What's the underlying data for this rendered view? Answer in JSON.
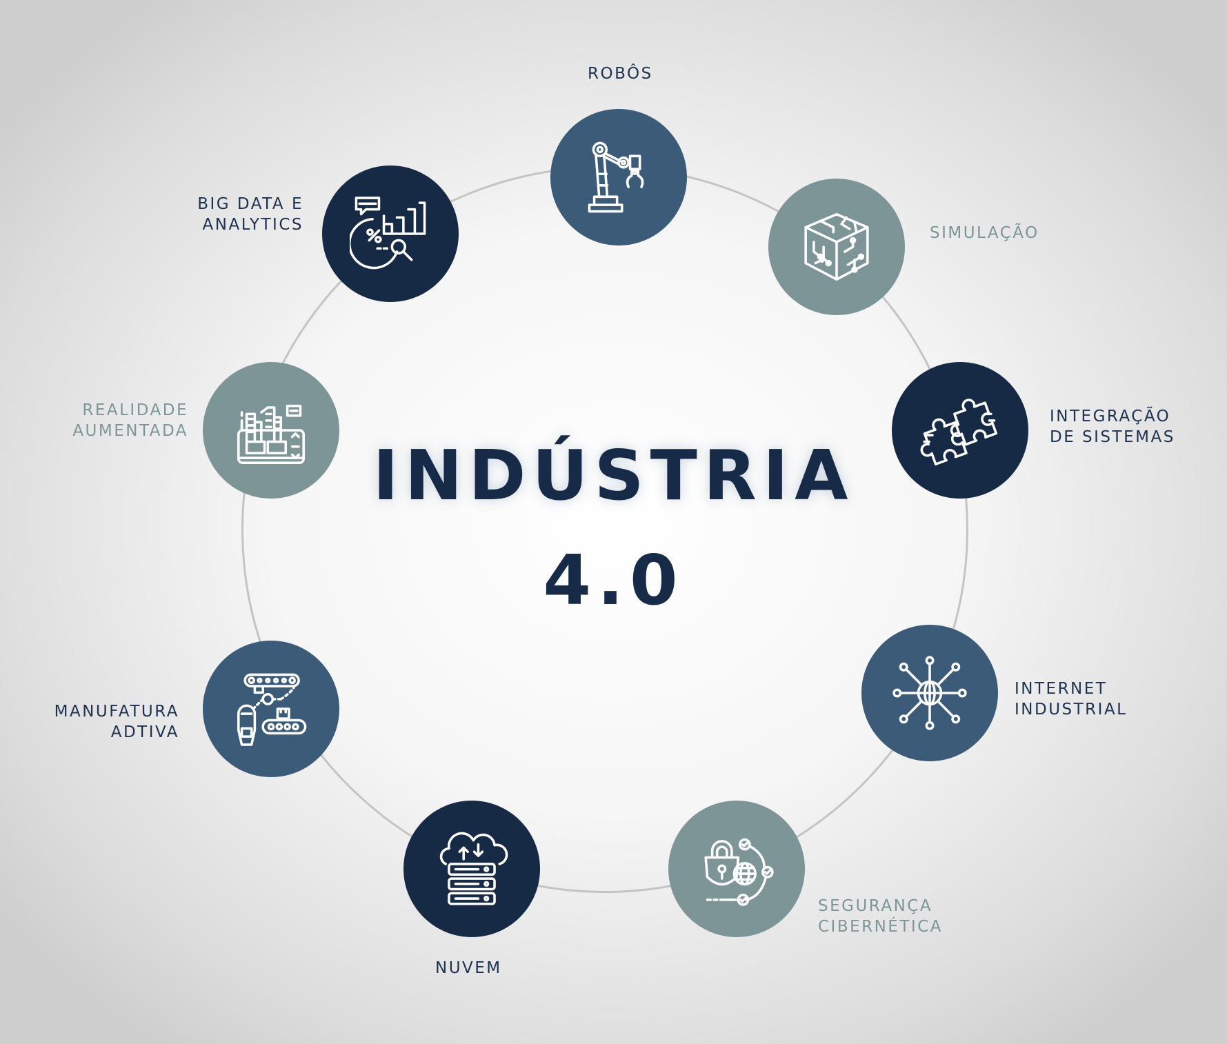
{
  "title": {
    "line1": "INDÚSTRIA",
    "line2": "4.0"
  },
  "colors": {
    "dark_navy": "#172a45",
    "steel_blue": "#3c5b79",
    "slate_gray": "#7d9597",
    "ring": "#c4c4c4",
    "icon_stroke": "#ffffff"
  },
  "nodes": [
    {
      "id": "robos",
      "icon": "robot-arm-icon",
      "lines": [
        "ROBÔS"
      ]
    },
    {
      "id": "simulacao",
      "icon": "circuit-cube-icon",
      "lines": [
        "SIMULAÇÃO"
      ]
    },
    {
      "id": "integracao",
      "icon": "puzzle-icon",
      "lines": [
        "INTEGRAÇÃO",
        "DE SISTEMAS"
      ]
    },
    {
      "id": "internet",
      "icon": "network-globe-icon",
      "lines": [
        "INTERNET",
        "INDUSTRIAL"
      ]
    },
    {
      "id": "seguranca",
      "icon": "padlock-globe-icon",
      "lines": [
        "SEGURANÇA",
        "CIBERNÉTICA"
      ]
    },
    {
      "id": "nuvem",
      "icon": "cloud-server-icon",
      "lines": [
        "NUVEM"
      ]
    },
    {
      "id": "manufatura",
      "icon": "conveyor-robot-icon",
      "lines": [
        "MANUFATURA",
        "ADTIVA"
      ]
    },
    {
      "id": "realidade",
      "icon": "ar-city-tablet-icon",
      "lines": [
        "REALIDADE",
        "AUMENTADA"
      ]
    },
    {
      "id": "bigdata",
      "icon": "analytics-chart-icon",
      "lines": [
        "BIG DATA E",
        "ANALYTICS"
      ]
    }
  ]
}
